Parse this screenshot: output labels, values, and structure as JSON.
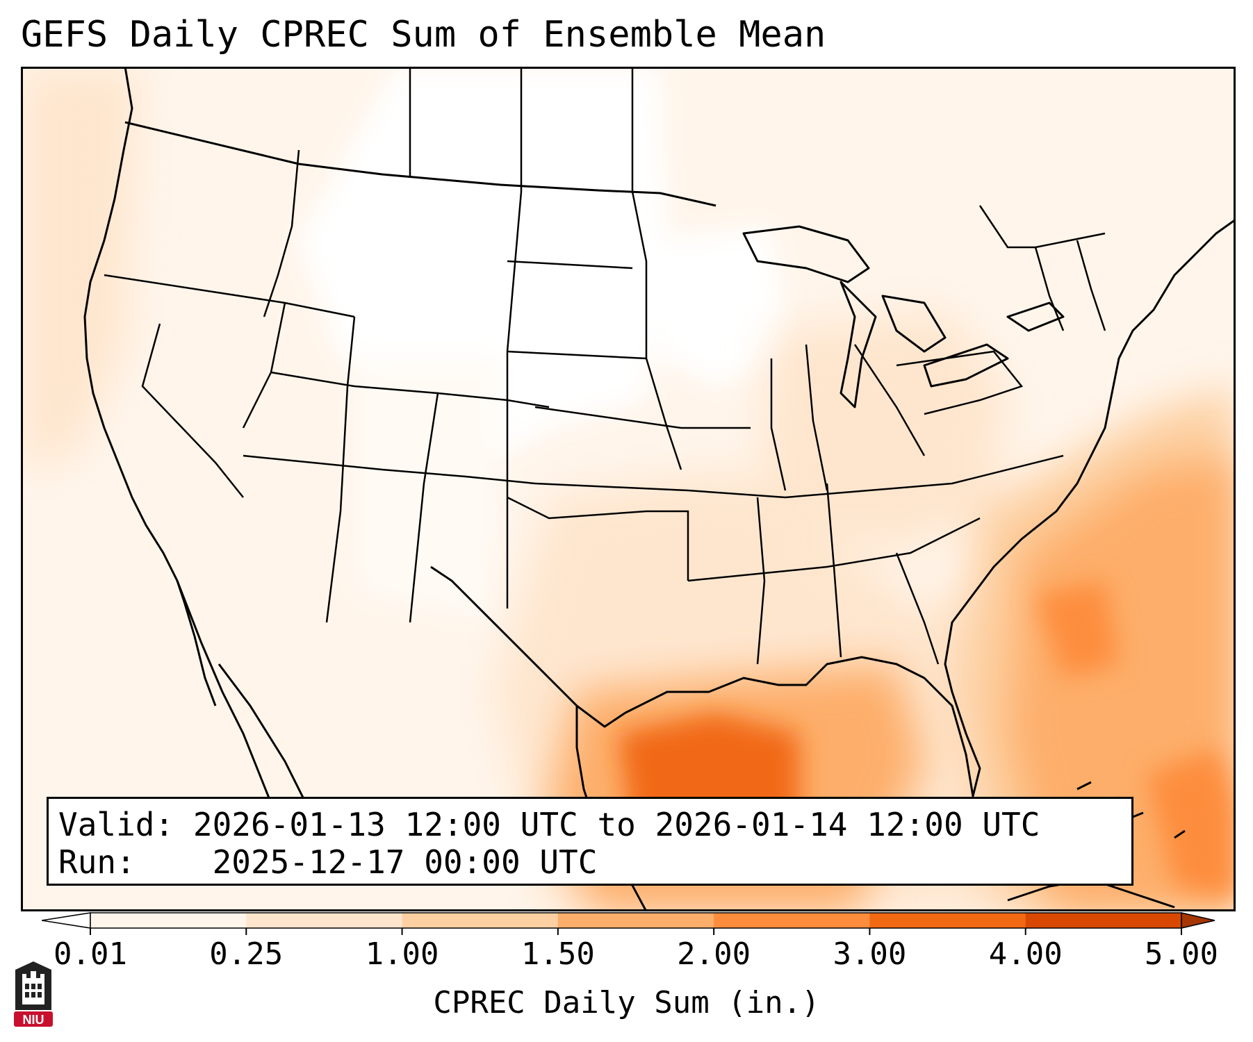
{
  "title": "GEFS Daily CPREC Sum of Ensemble Mean",
  "info": {
    "valid_label": "Valid:",
    "valid_value": "2026-01-13 12:00 UTC to 2026-01-14 12:00 UTC",
    "run_label": "Run:",
    "run_value": "2025-12-17 00:00 UTC"
  },
  "colorbar": {
    "label": "CPREC Daily Sum (in.)",
    "ticks": [
      "0.01",
      "0.25",
      "1.00",
      "1.50",
      "2.00",
      "3.00",
      "4.00",
      "5.00"
    ],
    "colors": [
      "#fff5eb",
      "#fee6ce",
      "#fdd0a2",
      "#fdae6b",
      "#fd8d3c",
      "#f16913",
      "#d94801",
      "#a63603"
    ],
    "under_color": "#ffffff",
    "over_color": "#7f2704"
  },
  "logo": {
    "text": "NIU",
    "accent": "#c8102e"
  },
  "colors": {
    "land_low": "#fff5eb",
    "land_light": "#fee6ce",
    "moderate": "#fdae6b",
    "heavy": "#f16913",
    "boundary": "#000000"
  }
}
